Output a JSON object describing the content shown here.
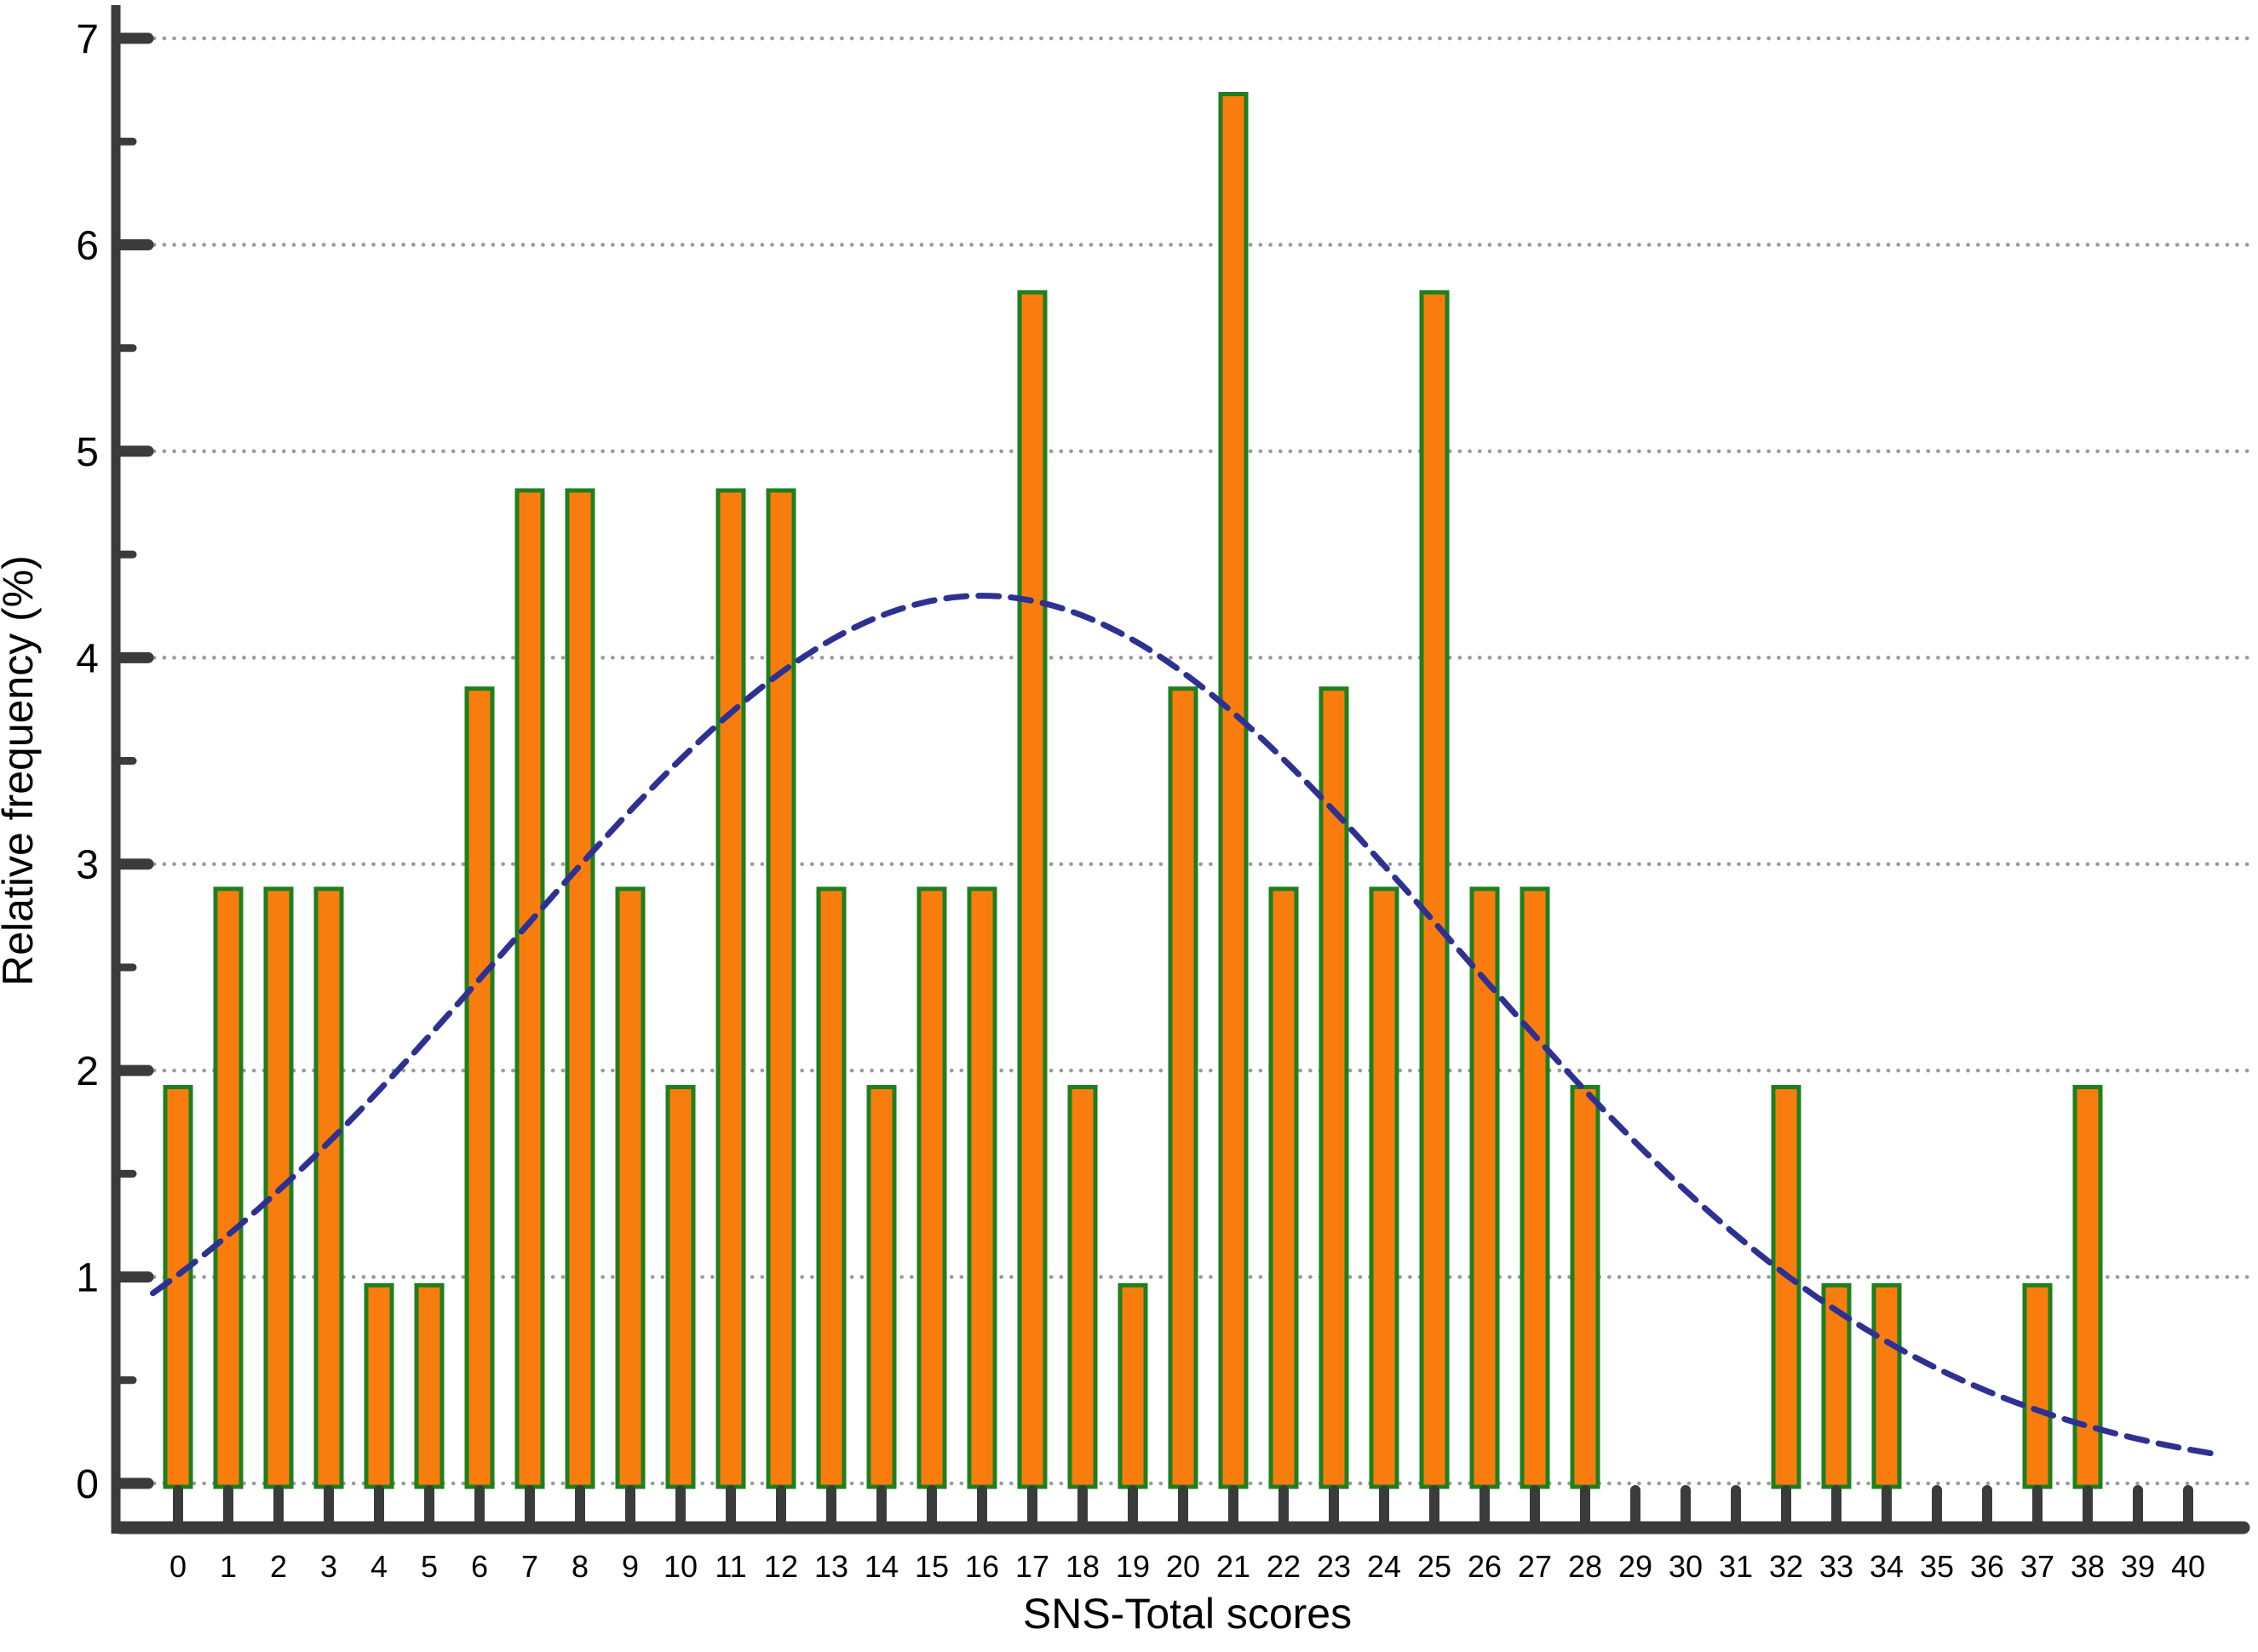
{
  "figure": {
    "background": "#FFFFFF"
  },
  "chart_data": {
    "type": "bar",
    "title": "",
    "xlabel": "SNS-Total scores",
    "ylabel": "Relative frequency (%)",
    "categories": [
      0,
      1,
      2,
      3,
      4,
      5,
      6,
      7,
      8,
      9,
      10,
      11,
      12,
      13,
      14,
      15,
      16,
      17,
      18,
      19,
      20,
      21,
      22,
      23,
      24,
      25,
      26,
      27,
      28,
      29,
      30,
      31,
      32,
      33,
      34,
      35,
      36,
      37,
      38,
      39,
      40
    ],
    "values": [
      1.92,
      2.88,
      2.88,
      2.88,
      0.96,
      0.96,
      3.85,
      4.81,
      4.81,
      2.88,
      1.92,
      4.81,
      4.81,
      2.88,
      1.92,
      2.88,
      2.88,
      5.77,
      1.92,
      0.96,
      3.85,
      6.73,
      2.88,
      3.85,
      2.88,
      5.77,
      2.88,
      2.88,
      1.92,
      0,
      0,
      0,
      1.92,
      0.96,
      0.96,
      0,
      0,
      0.96,
      1.92,
      0,
      0
    ],
    "ylim": [
      0,
      7
    ],
    "yticks": [
      0,
      1,
      2,
      3,
      4,
      5,
      6,
      7
    ],
    "y_minor_tick_interval": 0.5,
    "grid": "horizontal dotted lines at each integer, full plot width",
    "legend_position": "none",
    "bar_style": {
      "fill_color": "#F97D0E",
      "border_color": "#1E7F1E",
      "border_width_px": 5
    },
    "overlay_curve": {
      "shape": "normal",
      "mean": 16.0,
      "sd": 9.4,
      "peak_percent": 4.3,
      "x_start": -0.5,
      "x_end": 40.6,
      "color": "#2E3192",
      "style": "dashed"
    },
    "axis_color": "#3B3B3B",
    "grid_color": "#9B9B9B",
    "text_color": "#000000"
  }
}
